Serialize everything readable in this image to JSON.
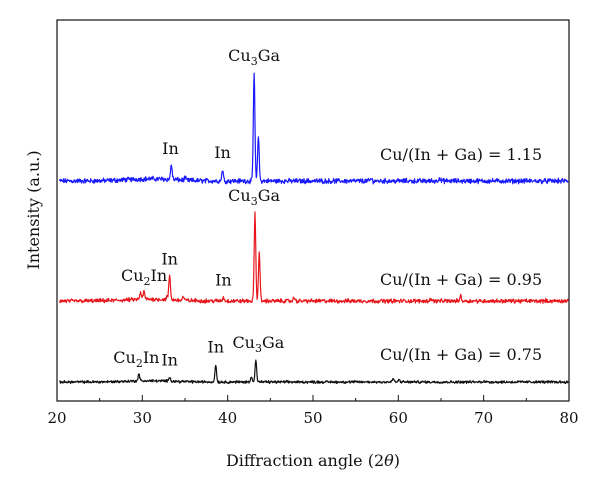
{
  "chart_data": {
    "type": "line",
    "xlabel": "Diffraction angle (2",
    "xlabel_theta": "θ",
    "xlabel_close": ")",
    "ylabel": "Intensity (a.u.)",
    "xlim": [
      20,
      80
    ],
    "xticks": [
      "20",
      "30",
      "40",
      "50",
      "60",
      "70",
      "80"
    ],
    "grid": false,
    "series": [
      {
        "name": "Cu/(In + Ga) = 1.15",
        "color": "#1a1aff",
        "peaks": [
          [
            33.4,
            0.14
          ],
          [
            35.0,
            0.02
          ],
          [
            39.4,
            0.1
          ],
          [
            43.1,
            1.0
          ],
          [
            43.6,
            0.42
          ],
          [
            56.8,
            0.02
          ],
          [
            64.8,
            0.03
          ]
        ],
        "annotations": [
          {
            "text": "In",
            "x": 33.3
          },
          {
            "text": "In",
            "x": 39.4
          },
          {
            "text": "Cu",
            "sub": "3",
            "rest": "Ga",
            "x": 43.1
          }
        ]
      },
      {
        "name": "Cu/(In + Ga) = 0.95",
        "color": "#e8151b",
        "peaks": [
          [
            29.8,
            0.08
          ],
          [
            30.2,
            0.09
          ],
          [
            32.9,
            0.03
          ],
          [
            33.2,
            0.28
          ],
          [
            34.8,
            0.04
          ],
          [
            39.5,
            0.04
          ],
          [
            43.2,
            1.0
          ],
          [
            43.7,
            0.55
          ],
          [
            47.8,
            0.04
          ],
          [
            63.8,
            0.03
          ],
          [
            67.3,
            0.06
          ]
        ],
        "annotations": [
          {
            "text": "Cu",
            "sub": "2",
            "rest": "In",
            "x": 30.2
          },
          {
            "text": "In",
            "x": 33.2
          },
          {
            "text": "In",
            "x": 39.5
          },
          {
            "text": "Cu",
            "sub": "3",
            "rest": "Ga",
            "x": 43.1
          }
        ]
      },
      {
        "name": "Cu/(In + Ga) = 0.75",
        "color": "#111111",
        "peaks": [
          [
            29.6,
            0.12
          ],
          [
            33.2,
            0.08
          ],
          [
            38.6,
            0.3
          ],
          [
            42.8,
            0.1
          ],
          [
            43.3,
            0.38
          ],
          [
            59.4,
            0.06
          ],
          [
            60.1,
            0.04
          ],
          [
            70.0,
            0.02
          ]
        ],
        "annotations": [
          {
            "text": "Cu",
            "sub": "2",
            "rest": "In",
            "x": 29.3
          },
          {
            "text": "In",
            "x": 33.2
          },
          {
            "text": "In",
            "x": 38.6
          },
          {
            "text": "Cu",
            "sub": "3",
            "rest": "Ga",
            "x": 43.6
          }
        ]
      }
    ]
  }
}
